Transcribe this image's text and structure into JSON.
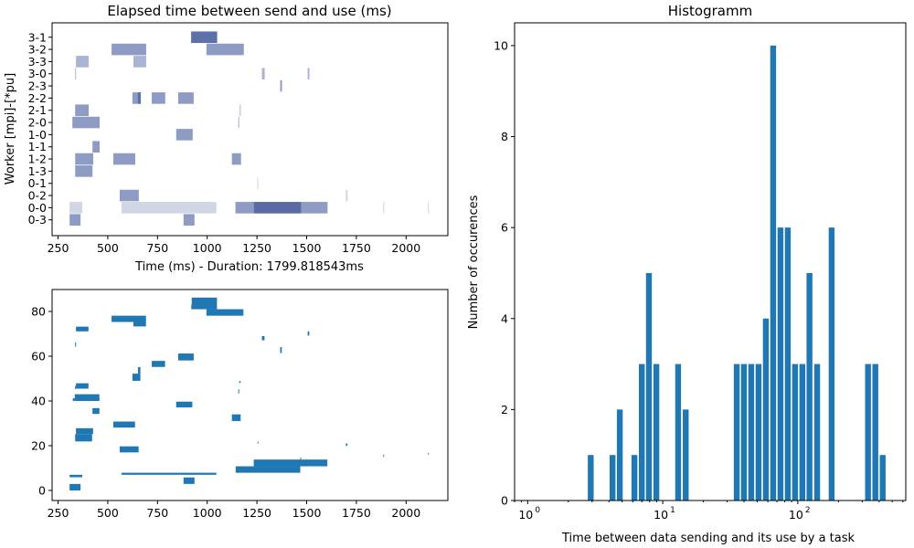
{
  "chart_data": [
    {
      "type": "gantt",
      "title": "Elapsed time between send and use (ms)",
      "xlabel": "Time (ms) - Duration: 1799.818543ms",
      "ylabel": "Worker [mpi]-[*pu]",
      "xlim": [
        220,
        2210
      ],
      "xticks": [
        250,
        500,
        750,
        1000,
        1250,
        1500,
        1750,
        2000
      ],
      "categories": [
        "0-3",
        "0-0",
        "0-2",
        "0-1",
        "1-3",
        "1-2",
        "1-1",
        "1-0",
        "2-0",
        "2-1",
        "2-2",
        "2-3",
        "3-0",
        "3-3",
        "3-2",
        "3-1"
      ],
      "bars": [
        {
          "row": "3-1",
          "start": 919,
          "end": 1050,
          "color": "#5e70a8"
        },
        {
          "row": "3-2",
          "start": 519,
          "end": 693,
          "color": "#8e9cc4"
        },
        {
          "row": "3-2",
          "start": 996,
          "end": 1184,
          "color": "#8e9cc4"
        },
        {
          "row": "3-3",
          "start": 340,
          "end": 404,
          "color": "#aab4d3"
        },
        {
          "row": "3-3",
          "start": 629,
          "end": 693,
          "color": "#aab4d3"
        },
        {
          "row": "3-0",
          "start": 336,
          "end": 339,
          "color": "#aab4d3"
        },
        {
          "row": "3-0",
          "start": 1275,
          "end": 1289,
          "color": "#aab4d3"
        },
        {
          "row": "3-0",
          "start": 1505,
          "end": 1514,
          "color": "#aab4d3"
        },
        {
          "row": "2-3",
          "start": 1367,
          "end": 1376,
          "color": "#8e9cc4"
        },
        {
          "row": "2-2",
          "start": 624,
          "end": 666,
          "color": "#8e9cc4"
        },
        {
          "row": "2-2",
          "start": 651,
          "end": 666,
          "color": "#5e70a8"
        },
        {
          "row": "2-2",
          "start": 721,
          "end": 789,
          "color": "#8e9cc4"
        },
        {
          "row": "2-2",
          "start": 854,
          "end": 932,
          "color": "#8e9cc4"
        },
        {
          "row": "2-1",
          "start": 336,
          "end": 404,
          "color": "#8e9cc4"
        },
        {
          "row": "2-1",
          "start": 1161,
          "end": 1170,
          "color": "#d0d6e4"
        },
        {
          "row": "2-0",
          "start": 322,
          "end": 459,
          "color": "#8e9cc4"
        },
        {
          "row": "2-0",
          "start": 1156,
          "end": 1161,
          "color": "#aab4d3"
        },
        {
          "row": "1-0",
          "start": 844,
          "end": 927,
          "color": "#8e9cc4"
        },
        {
          "row": "1-1",
          "start": 423,
          "end": 459,
          "color": "#8e9cc4"
        },
        {
          "row": "1-2",
          "start": 336,
          "end": 427,
          "color": "#8e9cc4"
        },
        {
          "row": "1-2",
          "start": 528,
          "end": 638,
          "color": "#8e9cc4"
        },
        {
          "row": "1-2",
          "start": 1124,
          "end": 1170,
          "color": "#8e9cc4"
        },
        {
          "row": "1-3",
          "start": 336,
          "end": 423,
          "color": "#8e9cc4"
        },
        {
          "row": "0-1",
          "start": 1252,
          "end": 1257,
          "color": "#d0d6e4"
        },
        {
          "row": "0-2",
          "start": 560,
          "end": 656,
          "color": "#8e9cc4"
        },
        {
          "row": "0-2",
          "start": 1697,
          "end": 1706,
          "color": "#d0d6e4"
        },
        {
          "row": "0-0",
          "start": 308,
          "end": 372,
          "color": "#d0d6e4"
        },
        {
          "row": "0-0",
          "start": 569,
          "end": 1046,
          "color": "#d0d6e4"
        },
        {
          "row": "0-0",
          "start": 1142,
          "end": 1234,
          "color": "#8e9cc4"
        },
        {
          "row": "0-0",
          "start": 1234,
          "end": 1473,
          "color": "#5a6aa2"
        },
        {
          "row": "0-0",
          "start": 1473,
          "end": 1605,
          "color": "#8e9cc4"
        },
        {
          "row": "0-0",
          "start": 1885,
          "end": 1890,
          "color": "#d0d6e4"
        },
        {
          "row": "0-0",
          "start": 2110,
          "end": 2114,
          "color": "#d0d6e4"
        },
        {
          "row": "0-3",
          "start": 308,
          "end": 363,
          "color": "#8e9cc4"
        },
        {
          "row": "0-3",
          "start": 881,
          "end": 936,
          "color": "#8e9cc4"
        }
      ]
    },
    {
      "type": "rectangles",
      "xlim": [
        220,
        2210
      ],
      "ylim": [
        -4.5,
        89.8
      ],
      "xticks": [
        250,
        500,
        750,
        1000,
        1250,
        1500,
        1750,
        2000
      ],
      "yticks": [
        0,
        20,
        40,
        60,
        80
      ],
      "color": "#1f77b4",
      "rects": [
        [
          922,
          1049,
          81,
          86.2
        ],
        [
          920,
          922,
          81,
          83
        ],
        [
          996,
          1182,
          78.1,
          81
        ],
        [
          519,
          692,
          75.3,
          78.1
        ],
        [
          629,
          692,
          73.3,
          75.3
        ],
        [
          340,
          403,
          71.1,
          73.2
        ],
        [
          336,
          339,
          64.2,
          66.2
        ],
        [
          1275,
          1288,
          67.1,
          69
        ],
        [
          1505,
          1513,
          69.2,
          71.1
        ],
        [
          1367,
          1375,
          61.4,
          64.1
        ],
        [
          854,
          932,
          58.1,
          61.2
        ],
        [
          721,
          788,
          55.2,
          57.9
        ],
        [
          652,
          664,
          52.2,
          55.1
        ],
        [
          624,
          664,
          49,
          52.2
        ],
        [
          1161,
          1168,
          48.1,
          48.9
        ],
        [
          1156,
          1159,
          43.3,
          45.2
        ],
        [
          340,
          403,
          45.5,
          47.9
        ],
        [
          336,
          340,
          45.2,
          46.8
        ],
        [
          334,
          458,
          40,
          43
        ],
        [
          324,
          334,
          40,
          41.2
        ],
        [
          844,
          925,
          37.1,
          39.7
        ],
        [
          423,
          458,
          34.2,
          36.8
        ],
        [
          1124,
          1168,
          31,
          34
        ],
        [
          528,
          637,
          28.1,
          30.8
        ],
        [
          340,
          426,
          25.2,
          27.8
        ],
        [
          336,
          421,
          21.9,
          25.2
        ],
        [
          1253,
          1256,
          21,
          21.8
        ],
        [
          1697,
          1705,
          19.9,
          21
        ],
        [
          560,
          655,
          17,
          19.7
        ],
        [
          1885,
          1888,
          15,
          16
        ],
        [
          2110,
          2113,
          16,
          16.8
        ],
        [
          1468,
          1471,
          13.8,
          14.8
        ],
        [
          1234,
          1604,
          10.8,
          13.8
        ],
        [
          1143,
          1468,
          7.9,
          10.8
        ],
        [
          569,
          1046,
          7,
          7.9
        ],
        [
          308,
          372,
          5.9,
          7
        ],
        [
          881,
          936,
          2.9,
          5.8
        ],
        [
          308,
          363,
          0,
          2.9
        ]
      ]
    },
    {
      "type": "bar",
      "title": "Histogramm",
      "xlabel": "Time between data sending and its use by a task",
      "ylabel": "Number of occurences",
      "xscale": "log",
      "xlim": [
        0.8,
        630
      ],
      "ylim": [
        0,
        10.5
      ],
      "xticks": [
        {
          "value": 1,
          "base": "10",
          "exp": "0"
        },
        {
          "value": 10,
          "base": "10",
          "exp": "1"
        },
        {
          "value": 100,
          "base": "10",
          "exp": "2"
        }
      ],
      "yticks": [
        0,
        2,
        4,
        6,
        8,
        10
      ],
      "color": "#1f77b4",
      "x": [
        2.93,
        4.25,
        4.81,
        6.17,
        7.0,
        7.9,
        8.97,
        13.0,
        14.8,
        35.3,
        39.9,
        45.2,
        51.2,
        58,
        65.7,
        74.4,
        84.3,
        95.4,
        108,
        122,
        139,
        178,
        331,
        375,
        425
      ],
      "values": [
        1,
        1,
        2,
        1,
        3,
        5,
        3,
        3,
        2,
        3,
        3,
        3,
        3,
        4,
        10,
        6,
        6,
        3,
        3,
        5,
        3,
        6,
        3,
        3,
        1
      ]
    }
  ]
}
